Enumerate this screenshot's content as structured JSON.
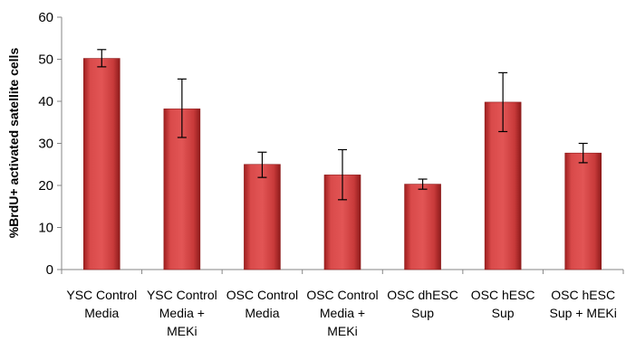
{
  "chart_data": {
    "type": "bar",
    "title": "",
    "xlabel": "",
    "ylabel": "%BrdU+ activated satellite cells",
    "ylim": [
      0,
      60
    ],
    "yticks": [
      0,
      10,
      20,
      30,
      40,
      50,
      60
    ],
    "grid": false,
    "legend": "none",
    "bar_color": "#c83a3a",
    "categories": [
      [
        "YSC Control",
        "Media"
      ],
      [
        "YSC Control",
        "Media +",
        "MEKi"
      ],
      [
        "OSC Control",
        "Media"
      ],
      [
        "OSC Control",
        "Media +",
        "MEKi"
      ],
      [
        "OSC dhESC",
        "Sup"
      ],
      [
        "OSC hESC",
        "Sup"
      ],
      [
        "OSC hESC",
        "Sup + MEKi"
      ]
    ],
    "values": [
      50.2,
      38.2,
      25.0,
      22.5,
      20.3,
      39.8,
      27.7
    ],
    "error": [
      [
        48.2,
        52.3
      ],
      [
        31.4,
        45.3
      ],
      [
        21.9,
        27.9
      ],
      [
        16.6,
        28.5
      ],
      [
        19.1,
        21.5
      ],
      [
        32.8,
        46.8
      ],
      [
        25.4,
        30.0
      ]
    ]
  }
}
